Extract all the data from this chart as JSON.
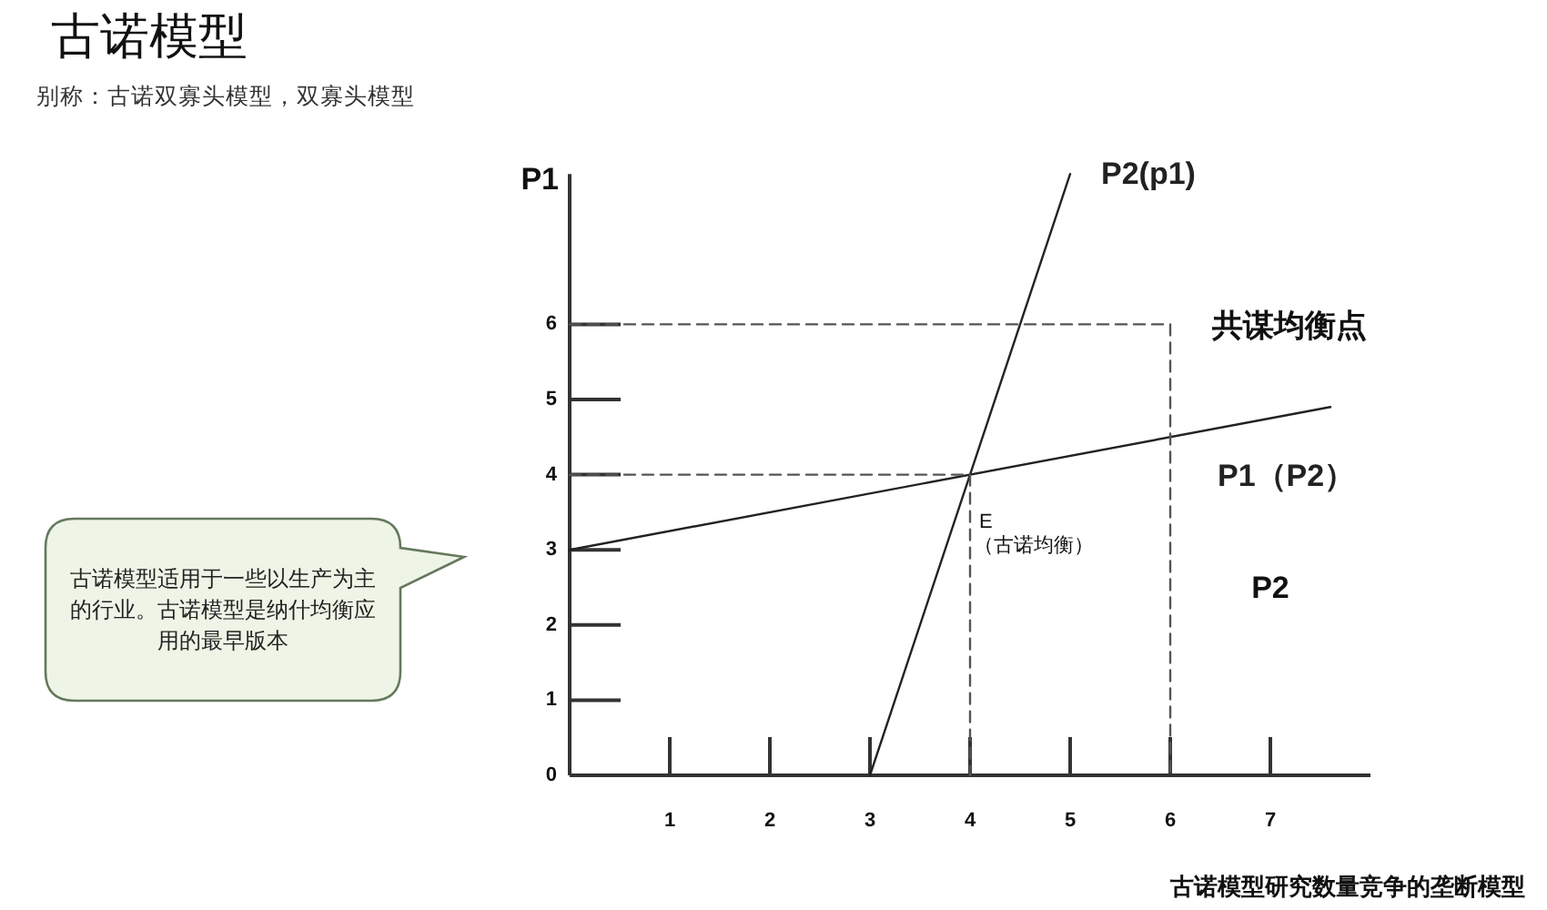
{
  "chart_data": {
    "type": "line",
    "title": "古诺模型",
    "subtitle": "别称：古诺双寡头模型，双寡头模型",
    "xlabel": "P2",
    "ylabel": "P1",
    "series": [
      {
        "name": "P2(p1)",
        "color": "#222222",
        "x": [
          3,
          5
        ],
        "values": [
          0,
          8
        ]
      },
      {
        "name": "P1（P2）",
        "color": "#222222",
        "x": [
          0,
          7.6
        ],
        "values": [
          3,
          4.9
        ]
      },
      {
        "color": "#555555",
        "line_style": "dashed",
        "x": [
          0,
          4,
          4
        ],
        "values": [
          4,
          4,
          0
        ]
      },
      {
        "color": "#555555",
        "line_style": "dashed",
        "x": [
          0,
          6,
          6
        ],
        "values": [
          6,
          6,
          0
        ]
      }
    ],
    "xlim": [
      0,
      8
    ],
    "ylim": [
      0,
      8
    ],
    "xticks": [
      1,
      2,
      3,
      4,
      5,
      6,
      7
    ],
    "yticks": [
      0,
      1,
      2,
      3,
      4,
      5,
      6
    ],
    "annotations": [
      {
        "text": "E\n（古诺均衡）",
        "x": 4,
        "y": 4
      },
      {
        "text": "共谋均衡点",
        "x": 6,
        "y": 6
      },
      "古诺模型适用于一些以生产为主的行业。古诺模型是纳什均衡应用的最早版本",
      "古诺模型研究数量竞争的垄断模型"
    ]
  }
}
